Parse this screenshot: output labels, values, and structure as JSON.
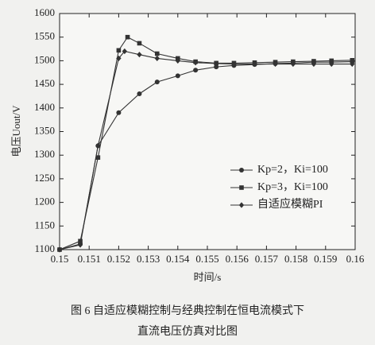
{
  "chart_data": {
    "type": "line",
    "xlabel": "时间/s",
    "ylabel": "电压Uout/V",
    "caption": [
      "图 6   自适应模糊控制与经典控制在恒电流模式下",
      "直流电压仿真对比图"
    ],
    "xlim": [
      0.15,
      0.16
    ],
    "xticks": [
      0.15,
      0.151,
      0.152,
      0.153,
      0.154,
      0.155,
      0.156,
      0.157,
      0.158,
      0.159,
      0.16
    ],
    "ylim": [
      1100,
      1600
    ],
    "yticks": [
      1100,
      1150,
      1200,
      1250,
      1300,
      1350,
      1400,
      1450,
      1500,
      1550,
      1600
    ],
    "legend": "lower right",
    "series": [
      {
        "name": "Kp=2，Ki=100",
        "color": "#333333",
        "marker": "circle",
        "x": [
          0.15,
          0.1507,
          0.1513,
          0.152,
          0.1527,
          0.1533,
          0.154,
          0.1546,
          0.1553,
          0.1559,
          0.1566,
          0.1573,
          0.1579,
          0.1586,
          0.1592,
          0.1599
        ],
        "values": [
          1100,
          1112,
          1320,
          1390,
          1430,
          1455,
          1468,
          1480,
          1487,
          1490,
          1492,
          1494,
          1495,
          1497,
          1497,
          1498
        ]
      },
      {
        "name": "Kp=3，Ki=100",
        "color": "#333333",
        "marker": "square",
        "x": [
          0.15,
          0.1507,
          0.1513,
          0.152,
          0.1523,
          0.1527,
          0.1533,
          0.154,
          0.1546,
          0.1553,
          0.1559,
          0.1566,
          0.1573,
          0.1579,
          0.1586,
          0.1592,
          0.1599
        ],
        "values": [
          1100,
          1118,
          1295,
          1522,
          1550,
          1537,
          1515,
          1505,
          1498,
          1495,
          1495,
          1496,
          1497,
          1498,
          1499,
          1500,
          1501
        ]
      },
      {
        "name": "自适应模糊PI",
        "color": "#333333",
        "marker": "diamond",
        "x": [
          0.15,
          0.1507,
          0.1513,
          0.152,
          0.1522,
          0.1527,
          0.1533,
          0.154,
          0.1546,
          0.1553,
          0.1559,
          0.1566,
          0.1573,
          0.1579,
          0.1586,
          0.1592,
          0.1599
        ],
        "values": [
          1100,
          1110,
          1320,
          1505,
          1520,
          1513,
          1505,
          1500,
          1496,
          1494,
          1493,
          1493,
          1493,
          1493,
          1493,
          1493,
          1493
        ]
      }
    ]
  }
}
